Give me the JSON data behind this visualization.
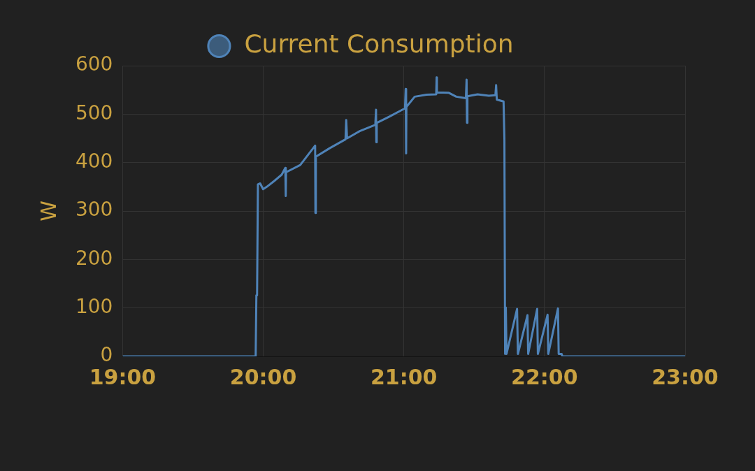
{
  "chart_data": {
    "type": "line",
    "ylabel": "W",
    "legend": "top",
    "grid": true,
    "xlim": [
      19,
      23
    ],
    "xticks": [
      {
        "value": 19,
        "label": "19:00"
      },
      {
        "value": 20,
        "label": "20:00"
      },
      {
        "value": 21,
        "label": "21:00"
      },
      {
        "value": 22,
        "label": "22:00"
      },
      {
        "value": 23,
        "label": "23:00"
      }
    ],
    "ylim": [
      0,
      600
    ],
    "yticks": [
      0,
      100,
      200,
      300,
      400,
      500,
      600
    ],
    "series": [
      {
        "name": "Current Consumption",
        "color": "#4f83b8",
        "x": [
          19,
          19.946,
          19.951,
          19.956,
          19.962,
          19.978,
          19.999,
          20.025,
          20.078,
          20.131,
          20.157,
          20.16,
          20.162,
          20.263,
          20.369,
          20.371,
          20.374,
          20.474,
          20.585,
          20.59,
          20.596,
          20.686,
          20.797,
          20.802,
          20.804,
          20.807,
          20.897,
          21.008,
          21.013,
          21.016,
          21.018,
          21.077,
          21.161,
          21.23,
          21.233,
          21.235,
          21.32,
          21.373,
          21.441,
          21.446,
          21.449,
          21.452,
          21.524,
          21.604,
          21.651,
          21.656,
          21.661,
          21.709,
          21.715,
          21.72,
          21.725,
          21.73,
          21.805,
          21.811,
          21.879,
          21.884,
          21.948,
          21.953,
          22.022,
          22.027,
          22.096,
          22.101,
          22.122,
          22.127,
          23
        ],
        "values": [
          0,
          0,
          126,
          126,
          355,
          357,
          345,
          350,
          362,
          375,
          389,
          331,
          380,
          395,
          435,
          296,
          412,
          430,
          448,
          488,
          450,
          465,
          478,
          509,
          442,
          482,
          495,
          512,
          552,
          419,
          515,
          536,
          540,
          541,
          576,
          545,
          544,
          536,
          533,
          571,
          482,
          537,
          541,
          538,
          539,
          560,
          530,
          526,
          448,
          5,
          101,
          5,
          98,
          5,
          85,
          5,
          98,
          5,
          86,
          5,
          99,
          5,
          5,
          0,
          0
        ]
      }
    ]
  }
}
